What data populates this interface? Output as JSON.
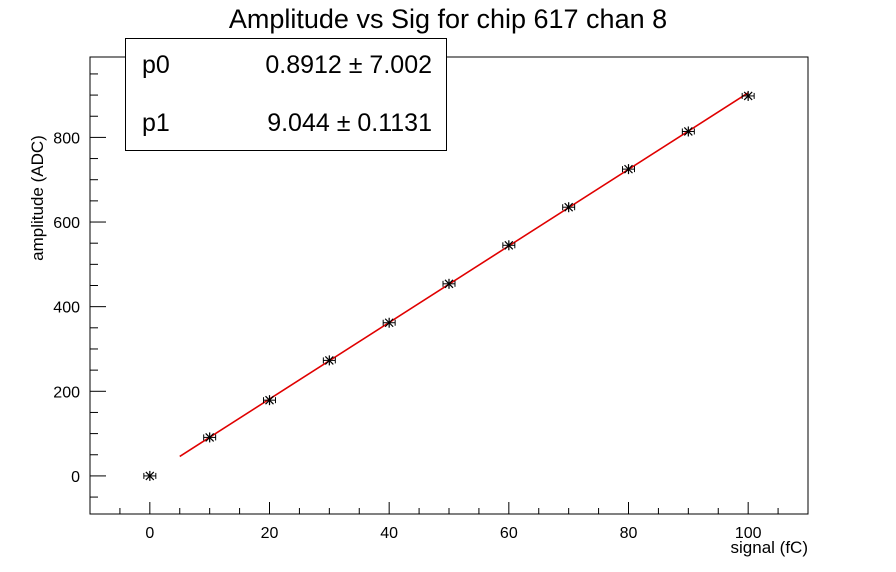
{
  "chart_data": {
    "type": "scatter",
    "title": "Amplitude vs Sig for chip 617 chan 8",
    "xlabel": "signal (fC)",
    "ylabel": "amplitude (ADC)",
    "xlim": [
      -10,
      110
    ],
    "ylim": [
      -90,
      990
    ],
    "xticks": [
      0,
      20,
      40,
      60,
      80,
      100
    ],
    "yticks": [
      0,
      200,
      400,
      600,
      800
    ],
    "grid": false,
    "series": [
      {
        "x": [
          0,
          10,
          20,
          30,
          40,
          50,
          60,
          70,
          80,
          90,
          100
        ],
        "y": [
          0,
          91,
          179,
          273,
          362,
          454,
          545,
          635,
          725,
          814,
          898
        ],
        "xerr": 1,
        "yerr": 3,
        "color": "#000000"
      }
    ],
    "fit": {
      "color": "#e00000",
      "x_range": [
        5,
        100
      ],
      "p0": 0.8912,
      "p1": 9.044
    },
    "stats_box": {
      "placement": "top-left",
      "rows": [
        {
          "name": "p0",
          "value": "0.8912 ± 7.002"
        },
        {
          "name": "p1",
          "value": "9.044 ± 0.1131"
        }
      ]
    }
  }
}
